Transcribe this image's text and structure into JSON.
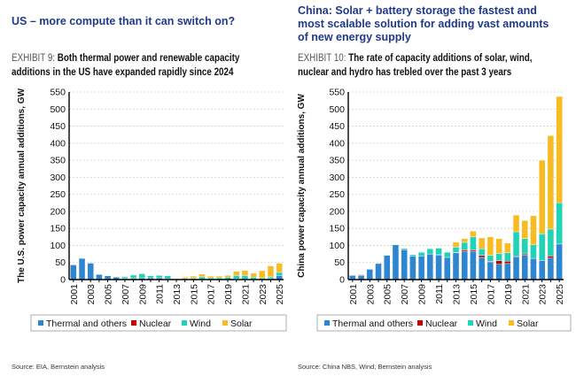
{
  "left": {
    "headline": "US – more compute than it can switch on?",
    "exhibit_label": "EXHIBIT 9:",
    "exhibit_title_line1": "Both thermal power and renewable capacity",
    "exhibit_title_line2": "additions in the US have expanded rapidly since 2024",
    "source": "Source: EIA, Bernstein analysis"
  },
  "right": {
    "headline_line1": "China: Solar + battery storage the fastest and",
    "headline_line2": "most scalable solution for adding vast amounts",
    "headline_line3": "of new energy supply",
    "exhibit_label": "EXHIBIT 10:",
    "exhibit_title_line1": "The rate of capacity additions of solar, wind,",
    "exhibit_title_line2": "nuclear and hydro has trebled over the past 3 years",
    "source": "Source: China NBS, Wind, Bernstein analysis"
  },
  "colors": {
    "Thermal and others": "#2f86d0",
    "Nuclear": "#c00000",
    "Wind": "#1fd3b6",
    "Solar": "#f8bb22"
  },
  "chart_data": [
    {
      "type": "bar",
      "stacked": true,
      "ylabel": "The U.S. power capacity annual additions, GW",
      "ylim": [
        0,
        550
      ],
      "yticks": [
        0,
        50,
        100,
        150,
        200,
        250,
        300,
        350,
        400,
        450,
        500,
        550
      ],
      "grid": true,
      "legend": "bottom",
      "categories": [
        "2001",
        "2002",
        "2003",
        "2004",
        "2005",
        "2006",
        "2007",
        "2008",
        "2009",
        "2010",
        "2011",
        "2012",
        "2013",
        "2014",
        "2015",
        "2016",
        "2017",
        "2018",
        "2019",
        "2020",
        "2021",
        "2022",
        "2023",
        "2024",
        "2025"
      ],
      "series": [
        {
          "name": "Thermal and others",
          "values": [
            43,
            62,
            48,
            15,
            11,
            7,
            3,
            4,
            5,
            5,
            5,
            2,
            0,
            1,
            0,
            0,
            0,
            0,
            0,
            2,
            0,
            0,
            0,
            3,
            12
          ]
        },
        {
          "name": "Nuclear",
          "values": [
            0,
            0,
            0,
            0,
            0,
            0,
            0,
            0,
            0,
            0,
            0,
            0,
            0,
            0,
            0,
            0,
            0,
            0,
            0,
            0,
            0,
            0,
            0,
            0,
            0
          ]
        },
        {
          "name": "Wind",
          "values": [
            0,
            0,
            0,
            0,
            0,
            0,
            5,
            9,
            12,
            6,
            7,
            9,
            0,
            2,
            4,
            8,
            5,
            5,
            7,
            10,
            12,
            7,
            5,
            5,
            9
          ]
        },
        {
          "name": "Solar",
          "values": [
            0,
            0,
            0,
            0,
            0,
            0,
            0,
            0,
            0,
            0,
            0,
            0,
            2,
            4,
            6,
            8,
            5,
            5,
            5,
            12,
            15,
            12,
            21,
            32,
            27
          ]
        }
      ]
    },
    {
      "type": "bar",
      "stacked": true,
      "ylabel": "China power capacity annual additions, GW",
      "ylim": [
        0,
        550
      ],
      "yticks": [
        0,
        50,
        100,
        150,
        200,
        250,
        300,
        350,
        400,
        450,
        500,
        550
      ],
      "grid": true,
      "legend": "bottom",
      "categories": [
        "2001",
        "2002",
        "2003",
        "2004",
        "2005",
        "2006",
        "2007",
        "2008",
        "2009",
        "2010",
        "2011",
        "2012",
        "2013",
        "2014",
        "2015",
        "2016",
        "2017",
        "2018",
        "2019",
        "2020",
        "2021",
        "2022",
        "2023",
        "2024",
        "2025"
      ],
      "series": [
        {
          "name": "Thermal and others",
          "values": [
            12,
            12,
            30,
            47,
            71,
            102,
            88,
            68,
            69,
            75,
            72,
            65,
            79,
            83,
            83,
            65,
            52,
            45,
            47,
            67,
            71,
            62,
            56,
            63,
            104
          ]
        },
        {
          "name": "Nuclear",
          "values": [
            0,
            2,
            0,
            0,
            0,
            0,
            0,
            0,
            0,
            0,
            1,
            0,
            1,
            4,
            4,
            6,
            2,
            10,
            7,
            2,
            4,
            0,
            0,
            6,
            0
          ]
        },
        {
          "name": "Wind",
          "values": [
            0,
            0,
            0,
            0,
            0,
            1,
            3,
            5,
            11,
            15,
            19,
            15,
            15,
            22,
            38,
            19,
            17,
            21,
            25,
            71,
            45,
            40,
            78,
            79,
            121
          ]
        },
        {
          "name": "Solar",
          "values": [
            0,
            0,
            0,
            0,
            0,
            0,
            0,
            0,
            0,
            0,
            0,
            0,
            15,
            11,
            17,
            32,
            54,
            44,
            28,
            49,
            53,
            85,
            216,
            274,
            312
          ]
        }
      ]
    }
  ]
}
